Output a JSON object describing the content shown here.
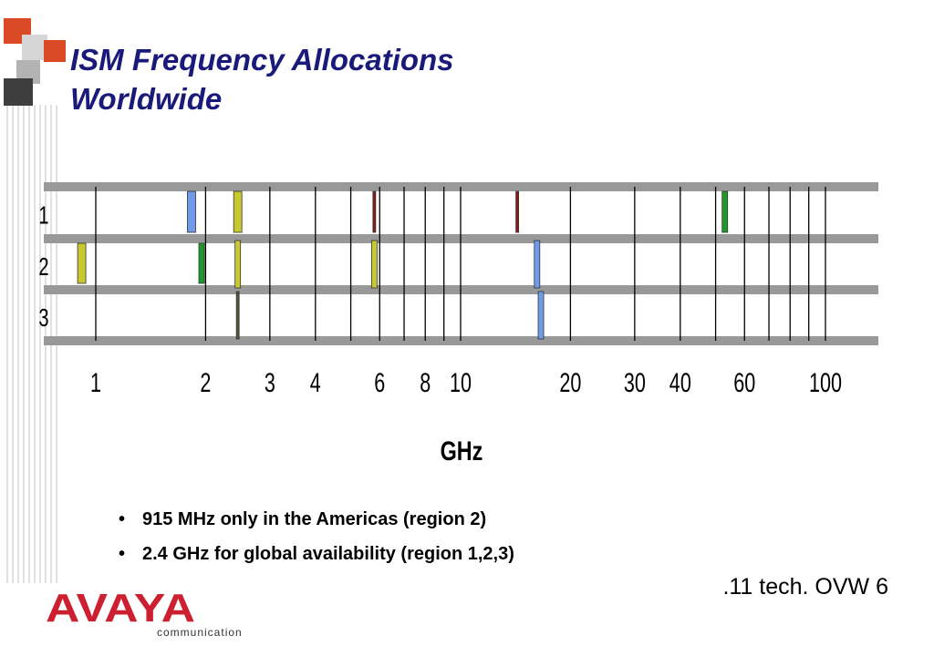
{
  "slide": {
    "title_line1": "ISM Frequency Allocations",
    "title_line2": "Worldwide",
    "footer": ".11 tech. OVW 6",
    "bullets": [
      "915 MHz only in the Americas (region 2)",
      "2.4 GHz for global availability  (region 1,2,3)"
    ]
  },
  "logo": {
    "brand": "AVAYA",
    "tagline": "communication",
    "color": "#cc1f2f"
  },
  "colors": {
    "band_grey": "#999999",
    "blue": "#6f9be8",
    "olive": "#c8c832",
    "green": "#1f9a2a",
    "darkred": "#8a1a1a",
    "darkolive": "#55553a"
  },
  "chart_data": {
    "type": "diagram",
    "xlabel": "GHz",
    "x_scale": "log",
    "regions": [
      "1",
      "2",
      "3"
    ],
    "ticks": [
      {
        "value": 1,
        "label": "1"
      },
      {
        "value": 2,
        "label": "2"
      },
      {
        "value": 3,
        "label": "3"
      },
      {
        "value": 4,
        "label": "4"
      },
      {
        "value": 6,
        "label": "6"
      },
      {
        "value": 8,
        "label": "8"
      },
      {
        "value": 10,
        "label": "10"
      },
      {
        "value": 20,
        "label": "20"
      },
      {
        "value": 30,
        "label": "30"
      },
      {
        "value": 40,
        "label": "40"
      },
      {
        "value": 60,
        "label": "60"
      },
      {
        "value": 100,
        "label": "100"
      }
    ],
    "minor_lines_ghz": [
      5,
      7,
      9,
      50,
      70,
      80,
      90
    ],
    "allocations": [
      {
        "region": 1,
        "ghz": 1.83,
        "color": "blue",
        "weight": "wide",
        "span": "row"
      },
      {
        "region": 1,
        "ghz": 2.45,
        "color": "olive",
        "weight": "wide",
        "span": "row"
      },
      {
        "region": 1,
        "ghz": 5.8,
        "color": "darkred",
        "weight": "thin",
        "span": "row"
      },
      {
        "region": 1,
        "ghz": 14.3,
        "color": "darkred",
        "weight": "thin",
        "span": "row"
      },
      {
        "region": 1,
        "ghz": 53,
        "color": "green",
        "weight": "medium",
        "span": "row"
      },
      {
        "region": 2,
        "ghz": 0.915,
        "color": "olive",
        "weight": "wide",
        "span": "row"
      },
      {
        "region": 2,
        "ghz": 1.95,
        "color": "green",
        "weight": "medium",
        "span": "row"
      },
      {
        "region": 2,
        "ghz": 2.45,
        "color": "olive",
        "weight": "medium",
        "span": "full"
      },
      {
        "region": 2,
        "ghz": 5.8,
        "color": "olive",
        "weight": "medium",
        "span": "full"
      },
      {
        "region": 2,
        "ghz": 16.2,
        "color": "blue",
        "weight": "medium",
        "span": "full"
      },
      {
        "region": 3,
        "ghz": 2.45,
        "color": "darkolive",
        "weight": "thin",
        "span": "full"
      },
      {
        "region": 3,
        "ghz": 16.6,
        "color": "blue",
        "weight": "medium",
        "span": "full"
      }
    ]
  }
}
